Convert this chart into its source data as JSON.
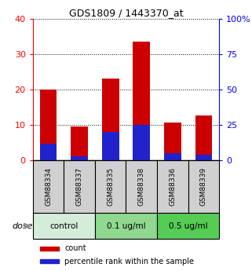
{
  "title": "GDS1809 / 1443370_at",
  "samples": [
    "GSM88334",
    "GSM88337",
    "GSM88335",
    "GSM88338",
    "GSM88336",
    "GSM88339"
  ],
  "count_values": [
    20,
    9.5,
    23,
    33.5,
    10.5,
    12.5
  ],
  "percentile_right_values": [
    11.25,
    2.5,
    20,
    25,
    5,
    3.75
  ],
  "groups": [
    {
      "label": "control",
      "start": 0,
      "end": 2,
      "color": "#d4edda"
    },
    {
      "label": "0.1 ug/ml",
      "start": 2,
      "end": 4,
      "color": "#90d890"
    },
    {
      "label": "0.5 ug/ml",
      "start": 4,
      "end": 6,
      "color": "#55cc55"
    }
  ],
  "ylim_left": [
    0,
    40
  ],
  "ylim_right": [
    0,
    100
  ],
  "yticks_left": [
    0,
    10,
    20,
    30,
    40
  ],
  "yticks_right": [
    0,
    25,
    50,
    75,
    100
  ],
  "ytick_labels_right": [
    "0",
    "25",
    "50",
    "75",
    "100%"
  ],
  "left_axis_color": "red",
  "right_axis_color": "blue",
  "count_color": "#cc0000",
  "percentile_color": "#2222cc",
  "sample_bg_color": "#d0d0d0",
  "dose_label": "dose",
  "legend_count": "count",
  "legend_percentile": "percentile rank within the sample"
}
